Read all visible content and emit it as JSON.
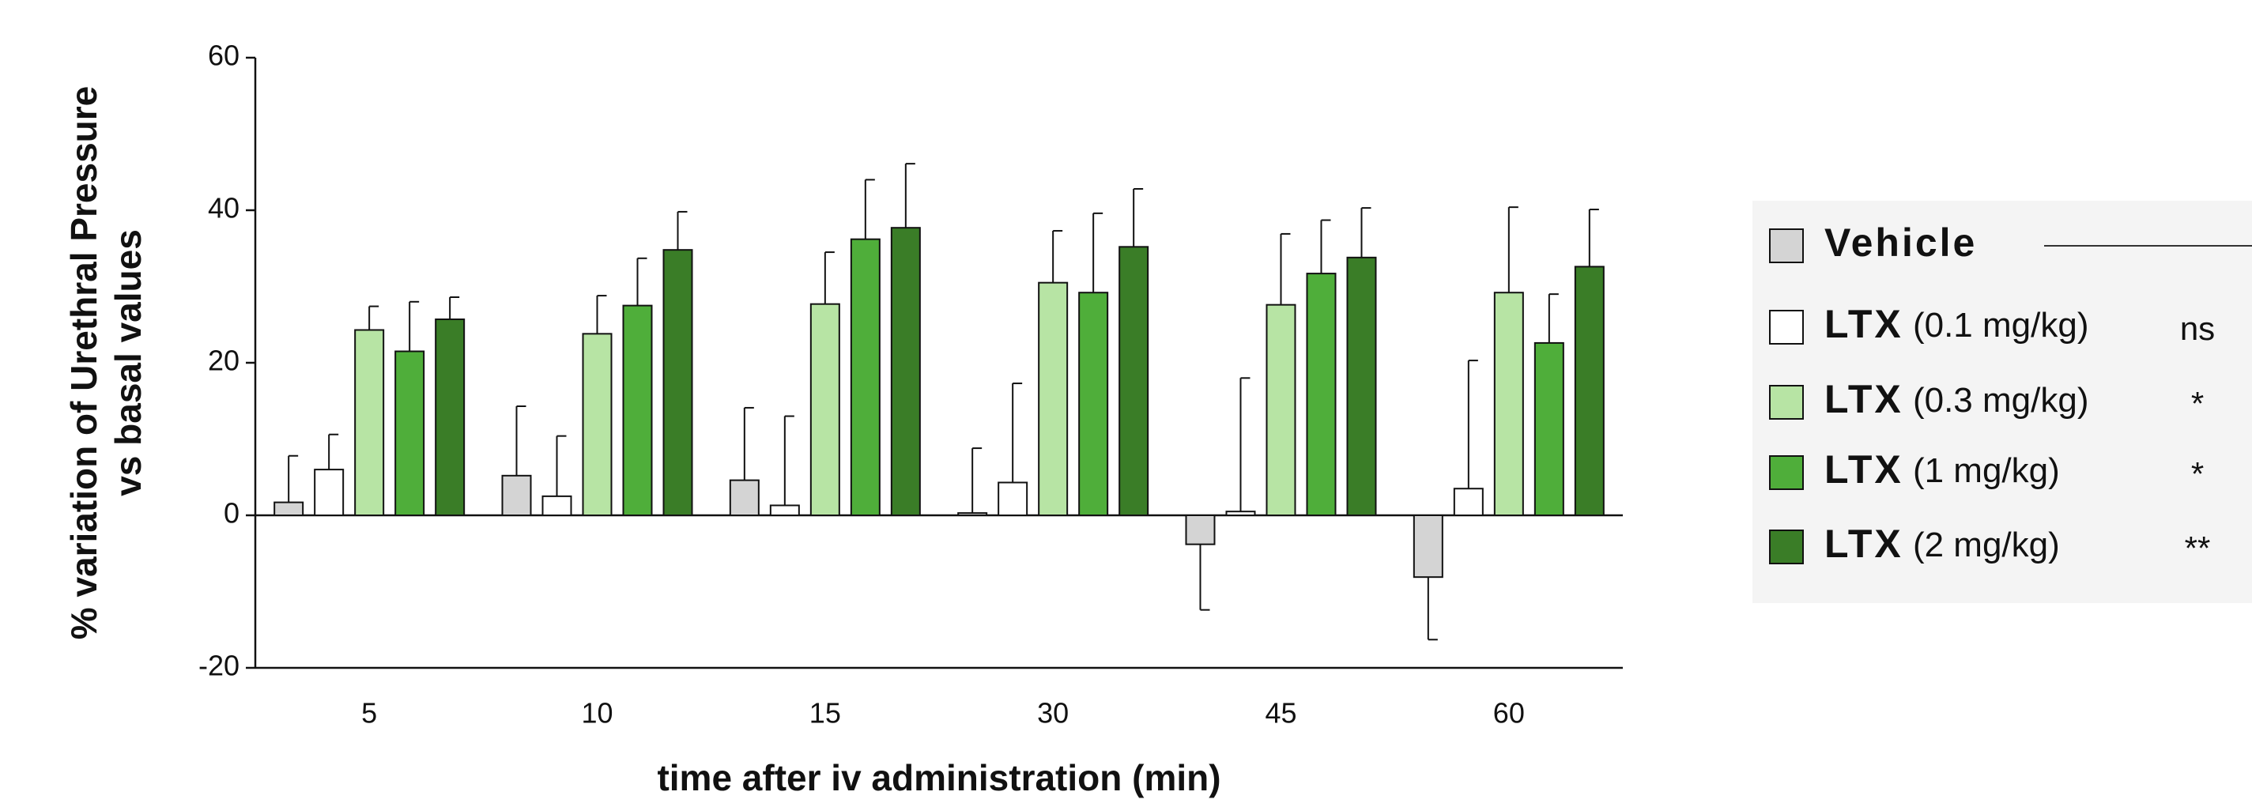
{
  "chart_data": {
    "type": "bar",
    "ylabel": [
      "% variation of Urethral Pressure",
      "vs basal values"
    ],
    "xlabel": "time after iv administration (min)",
    "categories": [
      "5",
      "10",
      "15",
      "30",
      "45",
      "60"
    ],
    "series": [
      {
        "name": "Vehicle",
        "color": "#d4d4d4",
        "values": [
          1.7,
          5.2,
          4.6,
          0.3,
          -3.8,
          -8.1
        ],
        "errors": [
          6.1,
          9.1,
          9.5,
          8.5,
          8.6,
          8.2
        ]
      },
      {
        "name": "LTX (0.1 mg/kg)",
        "color": "#ffffff",
        "note": "ns",
        "values": [
          6,
          2.5,
          1.3,
          4.3,
          0.5,
          3.5
        ],
        "errors": [
          4.6,
          7.9,
          11.7,
          13,
          17.5,
          16.8
        ]
      },
      {
        "name": "LTX (0.3 mg/kg)",
        "color": "#b7e4a4",
        "note": "*",
        "values": [
          24.3,
          23.8,
          27.7,
          30.5,
          27.6,
          29.2
        ],
        "errors": [
          3.1,
          5,
          6.8,
          6.8,
          9.3,
          11.2
        ]
      },
      {
        "name": "LTX (1 mg/kg)",
        "color": "#4fae3a",
        "note": "*",
        "values": [
          21.5,
          27.5,
          36.2,
          29.2,
          31.7,
          22.6
        ],
        "errors": [
          6.5,
          6.2,
          7.8,
          10.4,
          7,
          6.4
        ]
      },
      {
        "name": "LTX (2 mg/kg)",
        "color": "#3a7d27",
        "note": "**",
        "values": [
          25.7,
          34.8,
          37.7,
          35.2,
          33.8,
          32.6
        ],
        "errors": [
          2.9,
          5,
          8.4,
          7.6,
          6.5,
          7.5
        ]
      }
    ],
    "ylim": [
      -20,
      60
    ],
    "yticks": [
      -20,
      0,
      20,
      40,
      60
    ],
    "legend": "right"
  }
}
